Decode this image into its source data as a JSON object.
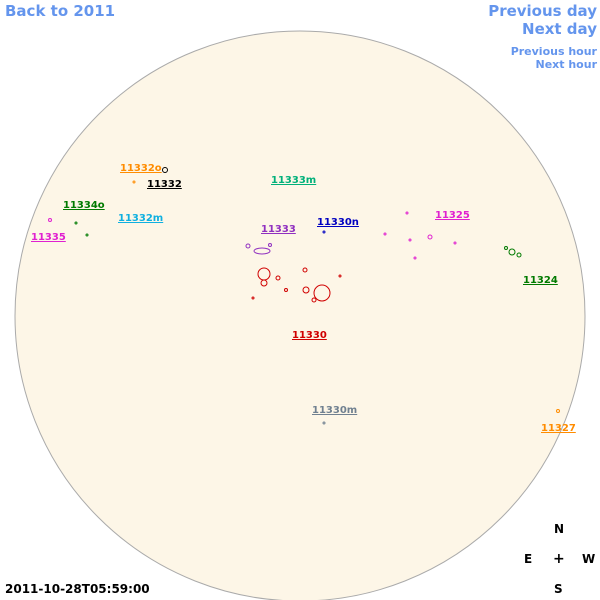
{
  "navigation": {
    "back": "Back to 2011",
    "previous_day": "Previous day",
    "next_day": "Next day",
    "previous_hour": "Previous hour",
    "next_hour": "Next hour"
  },
  "regions": [
    {
      "label": "11332o",
      "color": "#ff8c00"
    },
    {
      "label": "11332",
      "color": "#000000"
    },
    {
      "label": "11333m",
      "color": "#00b07a"
    },
    {
      "label": "11334o",
      "color": "#007a00"
    },
    {
      "label": "11325",
      "color": "#e020d0"
    },
    {
      "label": "11332m",
      "color": "#10b0e0"
    },
    {
      "label": "11330n",
      "color": "#0000c0"
    },
    {
      "label": "11333",
      "color": "#9030c0"
    },
    {
      "label": "11335",
      "color": "#e020d0"
    },
    {
      "label": "11324",
      "color": "#007a00"
    },
    {
      "label": "11330",
      "color": "#d00000"
    },
    {
      "label": "11330m",
      "color": "#708090"
    },
    {
      "label": "11327",
      "color": "#ff8c00"
    }
  ],
  "timestamp": "2011-10-28T05:59:00",
  "compass": {
    "north": "N",
    "east": "E",
    "center": "+",
    "west": "W",
    "south": "S"
  }
}
